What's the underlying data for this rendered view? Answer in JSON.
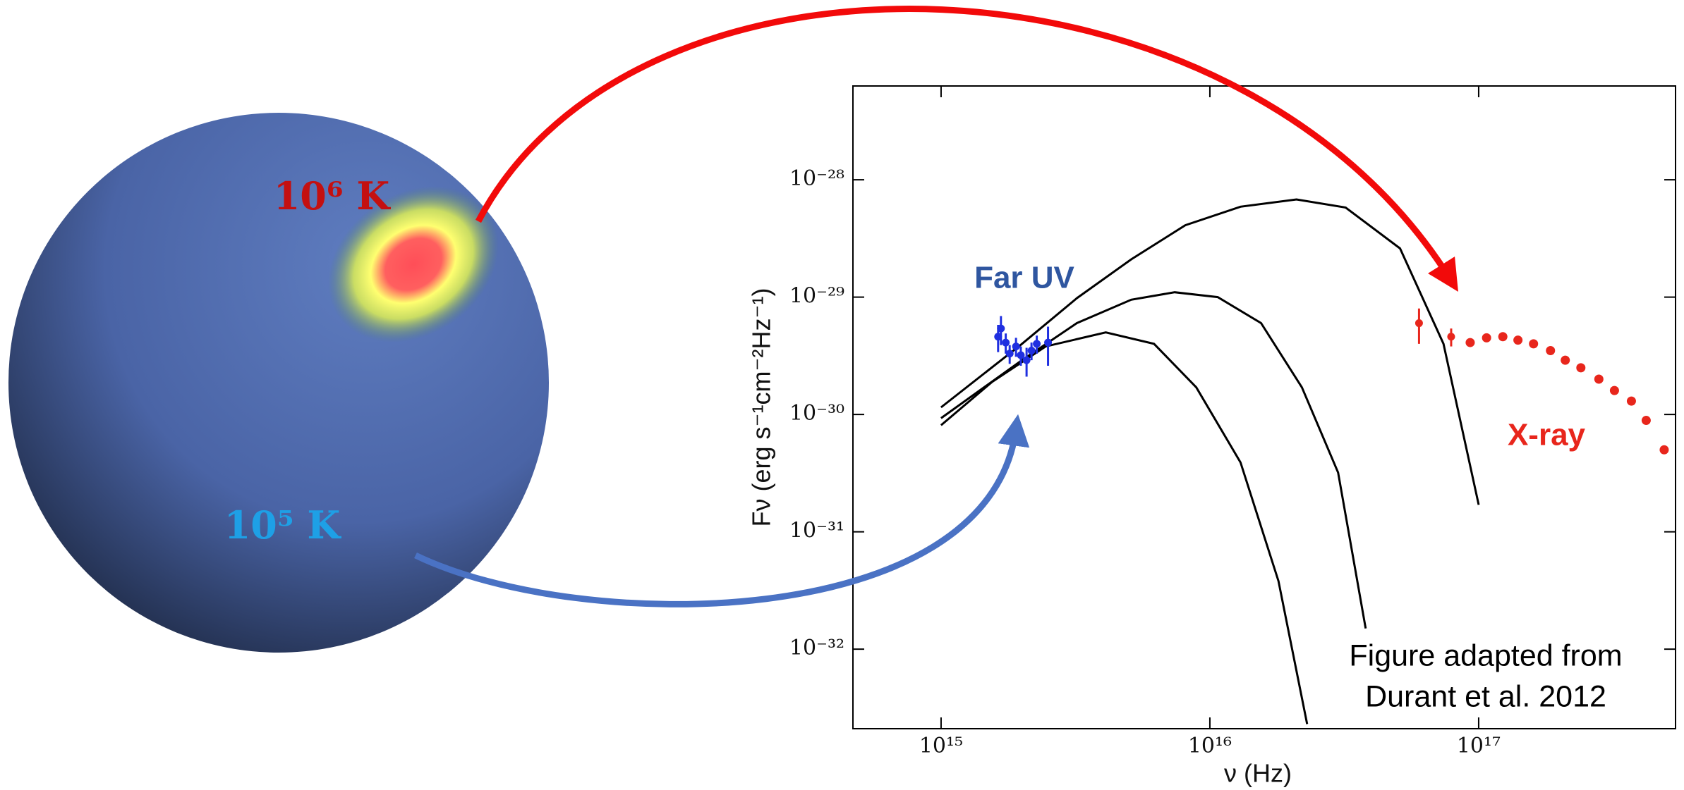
{
  "chart_data": {
    "type": "line",
    "x_label": "ν (Hz)",
    "y_label": "Fν (erg s⁻¹cm⁻²Hz⁻¹)",
    "x_log": true,
    "y_log": true,
    "xlim": [
      470000000000000.0,
      5.4e+17
    ],
    "ylim": [
      2.1e-33,
      6.3e-28
    ],
    "xticks": [
      {
        "value": 1000000000000000.0,
        "label": "10¹⁵"
      },
      {
        "value": 1e+16,
        "label": "10¹⁶"
      },
      {
        "value": 1e+17,
        "label": "10¹⁷"
      }
    ],
    "yticks": [
      {
        "value": 1e-32,
        "label": "10⁻³²"
      },
      {
        "value": 1e-31,
        "label": "10⁻³¹"
      },
      {
        "value": 1e-30,
        "label": "10⁻³⁰"
      },
      {
        "value": 1e-29,
        "label": "10⁻²⁹"
      },
      {
        "value": 1e-28,
        "label": "10⁻²⁸"
      }
    ],
    "series": [
      {
        "style": "line",
        "color": "#000000",
        "x": [
          1000000000000000.0,
          2000000000000000.0,
          3200000000000000.0,
          5100000000000000.0,
          8100000000000000.0,
          1.3e+16,
          2.1e+16,
          3.2e+16,
          5.1e+16,
          7.4e+16,
          1e+17
        ],
        "values": [
          1.15e-30,
          4e-30,
          9.8e-30,
          2.1e-29,
          4.1e-29,
          5.9e-29,
          6.8e-29,
          5.8e-29,
          2.6e-29,
          4e-30,
          1.7e-31
        ]
      },
      {
        "style": "line",
        "color": "#000000",
        "x": [
          1000000000000000.0,
          2000000000000000.0,
          3200000000000000.0,
          5100000000000000.0,
          7400000000000000.0,
          1.07e+16,
          1.55e+16,
          2.2e+16,
          3e+16,
          3.8e+16
        ],
        "values": [
          9.3e-31,
          2.9e-30,
          6e-30,
          9.5e-30,
          1.1e-29,
          1e-29,
          6e-30,
          1.7e-30,
          3.2e-31,
          1.5e-32
        ]
      },
      {
        "style": "line",
        "color": "#000000",
        "x": [
          1000000000000000.0,
          1550000000000000.0,
          2450000000000000.0,
          4100000000000000.0,
          6200000000000000.0,
          8900000000000000.0,
          1.3e+16,
          1.8e+16,
          2.3e+16
        ],
        "values": [
          8.1e-31,
          1.9e-30,
          3.8e-30,
          5e-30,
          4e-30,
          1.7e-30,
          3.9e-31,
          3.8e-32,
          2.3e-33
        ]
      },
      {
        "style": "errorbar",
        "color": "#1f2fe0",
        "x": [
          1630000000000000.0,
          1670000000000000.0,
          1740000000000000.0,
          1800000000000000.0,
          1900000000000000.0,
          1980000000000000.0,
          2080000000000000.0,
          2170000000000000.0,
          2270000000000000.0,
          2500000000000000.0
        ],
        "values": [
          4.6e-30,
          5.4e-30,
          4.1e-30,
          3.3e-30,
          3.8e-30,
          3.2e-30,
          2.9e-30,
          3.5e-30,
          4e-30,
          4.1e-30
        ],
        "errors": [
          1.2e-30,
          1.5e-30,
          8e-31,
          6e-31,
          7e-31,
          6e-31,
          8e-31,
          6e-31,
          7e-31,
          1.5e-30
        ]
      },
      {
        "style": "errorbar",
        "color": "#e8261c",
        "x": [
          6e+16,
          7.9e+16
        ],
        "values": [
          6e-30,
          4.6e-30
        ],
        "errors": [
          2e-30,
          8e-31
        ]
      },
      {
        "style": "dots",
        "color": "#e8261c",
        "x": [
          9.3e+16,
          1.07e+17,
          1.23e+17,
          1.4e+17,
          1.6e+17,
          1.85e+17,
          2.1e+17,
          2.4e+17,
          2.8e+17,
          3.2e+17,
          3.7e+17,
          4.2e+17,
          4.9e+17
        ],
        "values": [
          4.1e-30,
          4.5e-30,
          4.6e-30,
          4.3e-30,
          4e-30,
          3.5e-30,
          2.9e-30,
          2.5e-30,
          2e-30,
          1.6e-30,
          1.3e-30,
          8.9e-31,
          5e-31
        ]
      }
    ],
    "annotations": {
      "far_uv": "Far UV",
      "x_ray": "X-ray",
      "credit": [
        "Figure adapted from",
        "Durant et al. 2012"
      ],
      "hot_spot": "10⁶ K",
      "surface": "10⁵ K"
    }
  }
}
